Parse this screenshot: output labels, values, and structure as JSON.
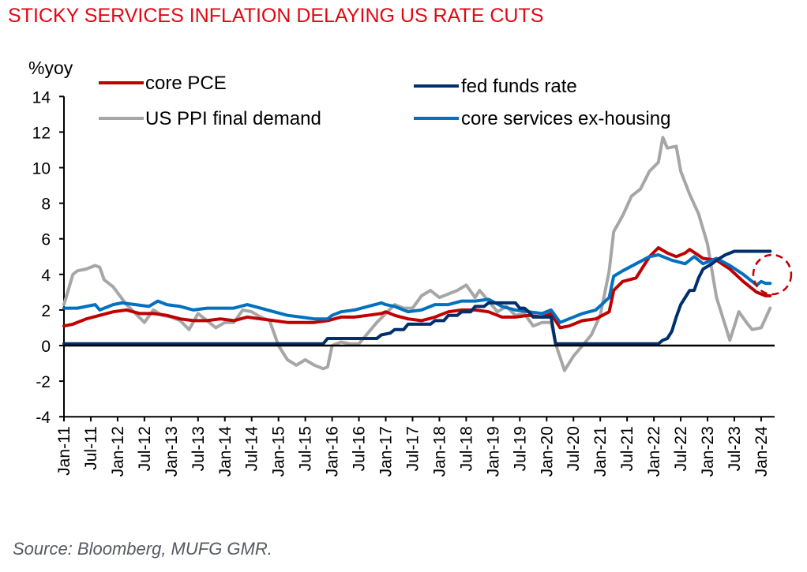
{
  "title": "STICKY SERVICES INFLATION DELAYING US RATE CUTS",
  "source": "Source: Bloomberg, MUFG GMR.",
  "chart_data": {
    "type": "line",
    "title": "STICKY SERVICES INFLATION DELAYING US RATE CUTS",
    "xlabel": "",
    "ylabel": "%yoy",
    "ylim": [
      -4,
      14
    ],
    "yticks": [
      14,
      12,
      10,
      8,
      6,
      4,
      2,
      0,
      -2,
      -4
    ],
    "xlim": [
      "Jan-11",
      "Apr-24"
    ],
    "xticks": [
      "Jan-11",
      "Jul-11",
      "Jan-12",
      "Jul-12",
      "Jan-13",
      "Jul-13",
      "Jan-14",
      "Jul-14",
      "Jan-15",
      "Jul-15",
      "Jan-16",
      "Jul-16",
      "Jan-17",
      "Jul-17",
      "Jan-18",
      "Jul-18",
      "Jan-19",
      "Jul-19",
      "Jan-20",
      "Jul-20",
      "Jan-21",
      "Jul-21",
      "Jan-22",
      "Jul-22",
      "Jan-23",
      "Jul-23",
      "Jan-24"
    ],
    "grid": false,
    "legend_position": "top",
    "annotation": "dashed red circle highlighting latest core services ex-housing and core PCE readings",
    "series": [
      {
        "name": "core PCE",
        "color": "#c00000",
        "points": [
          [
            "2011-01",
            1.1
          ],
          [
            "2011-03",
            1.2
          ],
          [
            "2011-06",
            1.5
          ],
          [
            "2011-09",
            1.7
          ],
          [
            "2011-12",
            1.9
          ],
          [
            "2012-03",
            2.0
          ],
          [
            "2012-06",
            1.8
          ],
          [
            "2012-09",
            1.8
          ],
          [
            "2012-12",
            1.7
          ],
          [
            "2013-03",
            1.5
          ],
          [
            "2013-06",
            1.4
          ],
          [
            "2013-09",
            1.4
          ],
          [
            "2013-12",
            1.5
          ],
          [
            "2014-03",
            1.4
          ],
          [
            "2014-06",
            1.6
          ],
          [
            "2014-09",
            1.5
          ],
          [
            "2014-12",
            1.4
          ],
          [
            "2015-03",
            1.3
          ],
          [
            "2015-06",
            1.3
          ],
          [
            "2015-09",
            1.3
          ],
          [
            "2015-12",
            1.4
          ],
          [
            "2016-03",
            1.6
          ],
          [
            "2016-06",
            1.6
          ],
          [
            "2016-09",
            1.7
          ],
          [
            "2016-12",
            1.8
          ],
          [
            "2017-01",
            1.9
          ],
          [
            "2017-03",
            1.7
          ],
          [
            "2017-06",
            1.5
          ],
          [
            "2017-09",
            1.4
          ],
          [
            "2017-12",
            1.6
          ],
          [
            "2018-03",
            1.9
          ],
          [
            "2018-06",
            2.0
          ],
          [
            "2018-09",
            2.0
          ],
          [
            "2018-12",
            1.9
          ],
          [
            "2019-03",
            1.6
          ],
          [
            "2019-06",
            1.6
          ],
          [
            "2019-09",
            1.7
          ],
          [
            "2019-12",
            1.6
          ],
          [
            "2020-02",
            1.8
          ],
          [
            "2020-04",
            1.0
          ],
          [
            "2020-06",
            1.1
          ],
          [
            "2020-09",
            1.4
          ],
          [
            "2020-12",
            1.5
          ],
          [
            "2021-03",
            1.9
          ],
          [
            "2021-04",
            3.1
          ],
          [
            "2021-06",
            3.6
          ],
          [
            "2021-09",
            3.8
          ],
          [
            "2021-12",
            5.0
          ],
          [
            "2022-02",
            5.5
          ],
          [
            "2022-04",
            5.2
          ],
          [
            "2022-06",
            5.0
          ],
          [
            "2022-08",
            5.2
          ],
          [
            "2022-09",
            5.4
          ],
          [
            "2022-12",
            4.9
          ],
          [
            "2023-03",
            4.8
          ],
          [
            "2023-06",
            4.3
          ],
          [
            "2023-09",
            3.6
          ],
          [
            "2023-12",
            3.0
          ],
          [
            "2024-02",
            2.8
          ],
          [
            "2024-03",
            2.8
          ]
        ]
      },
      {
        "name": "US PPI final demand",
        "color": "#a6a6a6",
        "points": [
          [
            "2011-01",
            2.3
          ],
          [
            "2011-03",
            4.0
          ],
          [
            "2011-04",
            4.2
          ],
          [
            "2011-06",
            4.3
          ],
          [
            "2011-08",
            4.5
          ],
          [
            "2011-09",
            4.4
          ],
          [
            "2011-10",
            3.7
          ],
          [
            "2011-12",
            3.3
          ],
          [
            "2012-03",
            2.3
          ],
          [
            "2012-05",
            1.8
          ],
          [
            "2012-07",
            1.3
          ],
          [
            "2012-09",
            2.0
          ],
          [
            "2012-11",
            1.7
          ],
          [
            "2013-01",
            1.6
          ],
          [
            "2013-03",
            1.4
          ],
          [
            "2013-05",
            0.9
          ],
          [
            "2013-07",
            1.8
          ],
          [
            "2013-09",
            1.4
          ],
          [
            "2013-11",
            1.0
          ],
          [
            "2014-01",
            1.3
          ],
          [
            "2014-03",
            1.3
          ],
          [
            "2014-05",
            2.0
          ],
          [
            "2014-07",
            1.9
          ],
          [
            "2014-09",
            1.6
          ],
          [
            "2014-11",
            1.4
          ],
          [
            "2015-01",
            0.0
          ],
          [
            "2015-03",
            -0.8
          ],
          [
            "2015-05",
            -1.1
          ],
          [
            "2015-07",
            -0.8
          ],
          [
            "2015-09",
            -1.1
          ],
          [
            "2015-11",
            -1.3
          ],
          [
            "2015-12",
            -1.2
          ],
          [
            "2016-01",
            0.0
          ],
          [
            "2016-03",
            0.2
          ],
          [
            "2016-05",
            0.1
          ],
          [
            "2016-07",
            0.1
          ],
          [
            "2016-09",
            0.7
          ],
          [
            "2016-11",
            1.3
          ],
          [
            "2017-01",
            1.8
          ],
          [
            "2017-03",
            2.3
          ],
          [
            "2017-05",
            2.1
          ],
          [
            "2017-07",
            2.1
          ],
          [
            "2017-09",
            2.8
          ],
          [
            "2017-11",
            3.1
          ],
          [
            "2018-01",
            2.7
          ],
          [
            "2018-03",
            2.9
          ],
          [
            "2018-05",
            3.1
          ],
          [
            "2018-07",
            3.4
          ],
          [
            "2018-09",
            2.7
          ],
          [
            "2018-10",
            3.1
          ],
          [
            "2018-12",
            2.5
          ],
          [
            "2019-02",
            1.9
          ],
          [
            "2019-04",
            2.2
          ],
          [
            "2019-06",
            1.7
          ],
          [
            "2019-08",
            1.8
          ],
          [
            "2019-10",
            1.1
          ],
          [
            "2019-12",
            1.3
          ],
          [
            "2020-02",
            1.3
          ],
          [
            "2020-03",
            0.1
          ],
          [
            "2020-05",
            -1.4
          ],
          [
            "2020-07",
            -0.6
          ],
          [
            "2020-09",
            0.0
          ],
          [
            "2020-11",
            0.6
          ],
          [
            "2021-01",
            1.7
          ],
          [
            "2021-03",
            4.2
          ],
          [
            "2021-04",
            6.4
          ],
          [
            "2021-06",
            7.3
          ],
          [
            "2021-08",
            8.4
          ],
          [
            "2021-10",
            8.8
          ],
          [
            "2021-12",
            9.8
          ],
          [
            "2022-02",
            10.3
          ],
          [
            "2022-03",
            11.7
          ],
          [
            "2022-04",
            11.1
          ],
          [
            "2022-06",
            11.2
          ],
          [
            "2022-07",
            9.8
          ],
          [
            "2022-09",
            8.5
          ],
          [
            "2022-11",
            7.4
          ],
          [
            "2023-01",
            5.7
          ],
          [
            "2023-03",
            2.7
          ],
          [
            "2023-05",
            1.1
          ],
          [
            "2023-06",
            0.3
          ],
          [
            "2023-08",
            1.9
          ],
          [
            "2023-10",
            1.2
          ],
          [
            "2023-11",
            0.9
          ],
          [
            "2024-01",
            1.0
          ],
          [
            "2024-03",
            2.1
          ]
        ]
      },
      {
        "name": "fed funds rate",
        "color": "#002f6c",
        "points": [
          [
            "2011-01",
            0.1
          ],
          [
            "2015-11",
            0.1
          ],
          [
            "2015-12",
            0.4
          ],
          [
            "2016-11",
            0.4
          ],
          [
            "2016-12",
            0.6
          ],
          [
            "2017-02",
            0.7
          ],
          [
            "2017-03",
            0.9
          ],
          [
            "2017-05",
            0.9
          ],
          [
            "2017-06",
            1.2
          ],
          [
            "2017-11",
            1.2
          ],
          [
            "2017-12",
            1.4
          ],
          [
            "2018-02",
            1.4
          ],
          [
            "2018-03",
            1.7
          ],
          [
            "2018-05",
            1.7
          ],
          [
            "2018-06",
            1.9
          ],
          [
            "2018-08",
            1.9
          ],
          [
            "2018-09",
            2.2
          ],
          [
            "2018-11",
            2.2
          ],
          [
            "2018-12",
            2.4
          ],
          [
            "2019-06",
            2.4
          ],
          [
            "2019-07",
            2.1
          ],
          [
            "2019-08",
            2.1
          ],
          [
            "2019-09",
            1.9
          ],
          [
            "2019-10",
            1.6
          ],
          [
            "2020-02",
            1.6
          ],
          [
            "2020-03",
            0.1
          ],
          [
            "2022-02",
            0.1
          ],
          [
            "2022-03",
            0.3
          ],
          [
            "2022-04",
            0.4
          ],
          [
            "2022-05",
            0.8
          ],
          [
            "2022-06",
            1.6
          ],
          [
            "2022-07",
            2.3
          ],
          [
            "2022-09",
            3.1
          ],
          [
            "2022-10",
            3.1
          ],
          [
            "2022-11",
            3.8
          ],
          [
            "2022-12",
            4.3
          ],
          [
            "2023-02",
            4.6
          ],
          [
            "2023-03",
            4.8
          ],
          [
            "2023-05",
            5.1
          ],
          [
            "2023-07",
            5.3
          ],
          [
            "2024-03",
            5.3
          ]
        ]
      },
      {
        "name": "core services ex-housing",
        "color": "#0070c0",
        "points": [
          [
            "2011-01",
            2.1
          ],
          [
            "2011-04",
            2.1
          ],
          [
            "2011-06",
            2.2
          ],
          [
            "2011-08",
            2.3
          ],
          [
            "2011-09",
            2.0
          ],
          [
            "2011-12",
            2.3
          ],
          [
            "2012-02",
            2.4
          ],
          [
            "2012-05",
            2.3
          ],
          [
            "2012-08",
            2.2
          ],
          [
            "2012-10",
            2.5
          ],
          [
            "2012-12",
            2.3
          ],
          [
            "2013-03",
            2.2
          ],
          [
            "2013-06",
            2.0
          ],
          [
            "2013-09",
            2.1
          ],
          [
            "2013-12",
            2.1
          ],
          [
            "2014-03",
            2.1
          ],
          [
            "2014-06",
            2.3
          ],
          [
            "2014-09",
            2.1
          ],
          [
            "2014-12",
            1.9
          ],
          [
            "2015-03",
            1.7
          ],
          [
            "2015-06",
            1.6
          ],
          [
            "2015-09",
            1.5
          ],
          [
            "2015-12",
            1.5
          ],
          [
            "2016-01",
            1.7
          ],
          [
            "2016-03",
            1.9
          ],
          [
            "2016-06",
            2.0
          ],
          [
            "2016-09",
            2.2
          ],
          [
            "2016-12",
            2.4
          ],
          [
            "2017-01",
            2.3
          ],
          [
            "2017-03",
            2.2
          ],
          [
            "2017-06",
            1.9
          ],
          [
            "2017-09",
            2.0
          ],
          [
            "2017-12",
            2.3
          ],
          [
            "2018-03",
            2.3
          ],
          [
            "2018-06",
            2.5
          ],
          [
            "2018-09",
            2.5
          ],
          [
            "2018-12",
            2.6
          ],
          [
            "2019-03",
            2.2
          ],
          [
            "2019-06",
            2.0
          ],
          [
            "2019-09",
            1.9
          ],
          [
            "2019-12",
            1.8
          ],
          [
            "2020-02",
            2.0
          ],
          [
            "2020-04",
            1.3
          ],
          [
            "2020-06",
            1.5
          ],
          [
            "2020-09",
            1.8
          ],
          [
            "2020-12",
            2.0
          ],
          [
            "2021-03",
            2.7
          ],
          [
            "2021-04",
            3.9
          ],
          [
            "2021-06",
            4.2
          ],
          [
            "2021-09",
            4.6
          ],
          [
            "2021-12",
            5.0
          ],
          [
            "2022-02",
            5.1
          ],
          [
            "2022-05",
            4.8
          ],
          [
            "2022-08",
            4.6
          ],
          [
            "2022-10",
            5.0
          ],
          [
            "2022-12",
            4.6
          ],
          [
            "2023-03",
            4.9
          ],
          [
            "2023-06",
            4.5
          ],
          [
            "2023-09",
            4.0
          ],
          [
            "2023-12",
            3.4
          ],
          [
            "2024-01",
            3.6
          ],
          [
            "2024-02",
            3.5
          ],
          [
            "2024-03",
            3.5
          ]
        ]
      }
    ]
  }
}
